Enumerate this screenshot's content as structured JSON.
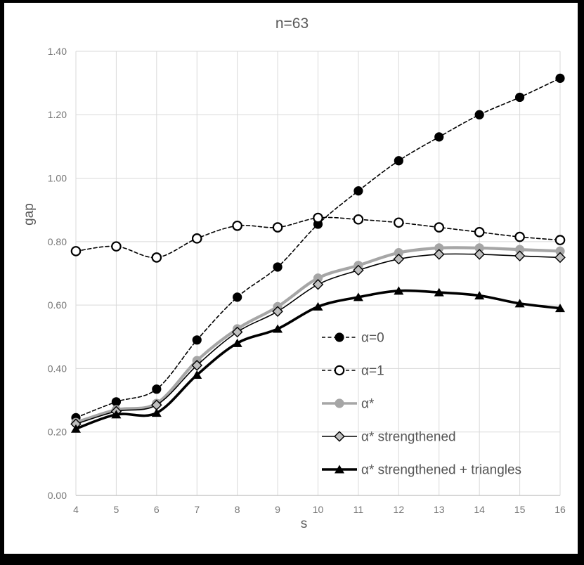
{
  "colors": {
    "frame_border": "#000000",
    "background": "#ffffff",
    "gridline": "#d9d9d9",
    "axis_line": "#bfbfbf",
    "tick_text": "#757575",
    "title_text": "#595959",
    "legend_text": "#555555"
  },
  "chart_data": {
    "type": "line",
    "title": "n=63",
    "xlabel": "s",
    "ylabel": "gap",
    "xlim": [
      4,
      16
    ],
    "ylim": [
      0.0,
      1.4
    ],
    "xticks": [
      4,
      5,
      6,
      7,
      8,
      9,
      10,
      11,
      12,
      13,
      14,
      15,
      16
    ],
    "yticks": [
      0.0,
      0.2,
      0.4,
      0.6,
      0.8,
      1.0,
      1.2,
      1.4
    ],
    "ytick_decimals": 2,
    "grid": true,
    "legend_position": "inside-lower-right",
    "categories": [
      4,
      5,
      6,
      7,
      8,
      9,
      10,
      11,
      12,
      13,
      14,
      15,
      16
    ],
    "series": [
      {
        "name": "α=0",
        "line": "dashed",
        "line_color": "#000000",
        "line_width": 1.6,
        "marker": "filled-circle",
        "marker_color": "#000000",
        "values": [
          0.245,
          0.295,
          0.335,
          0.49,
          0.625,
          0.72,
          0.855,
          0.96,
          1.055,
          1.13,
          1.2,
          1.255,
          1.315
        ]
      },
      {
        "name": "α=1",
        "line": "dashed",
        "line_color": "#000000",
        "line_width": 1.6,
        "marker": "open-circle",
        "marker_color": "#000000",
        "values": [
          0.77,
          0.785,
          0.75,
          0.81,
          0.85,
          0.845,
          0.875,
          0.87,
          0.86,
          0.845,
          0.83,
          0.815,
          0.805
        ]
      },
      {
        "name": "α*",
        "line": "solid",
        "line_color": "#a6a6a6",
        "line_width": 4.2,
        "marker": "filled-circle",
        "marker_color": "#a6a6a6",
        "values": [
          0.23,
          0.27,
          0.29,
          0.425,
          0.525,
          0.595,
          0.685,
          0.725,
          0.765,
          0.78,
          0.78,
          0.775,
          0.77
        ]
      },
      {
        "name": "α* strengthened",
        "line": "solid",
        "line_color": "#000000",
        "line_width": 1.6,
        "marker": "diamond",
        "marker_color": "#bfbfbf",
        "values": [
          0.225,
          0.265,
          0.285,
          0.41,
          0.515,
          0.58,
          0.665,
          0.71,
          0.745,
          0.76,
          0.76,
          0.755,
          0.75
        ]
      },
      {
        "name": "α* strengthened + triangles",
        "line": "solid",
        "line_color": "#000000",
        "line_width": 3.6,
        "marker": "filled-triangle",
        "marker_color": "#000000",
        "values": [
          0.21,
          0.255,
          0.26,
          0.38,
          0.48,
          0.525,
          0.595,
          0.625,
          0.645,
          0.64,
          0.63,
          0.605,
          0.59
        ]
      }
    ]
  }
}
